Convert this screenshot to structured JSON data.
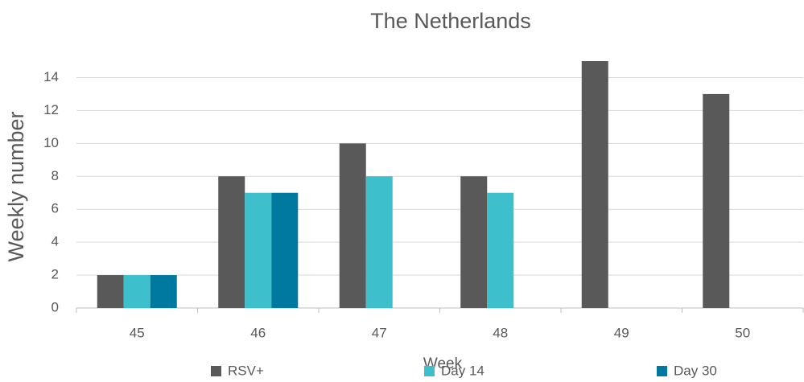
{
  "chart_data": {
    "type": "bar",
    "title": "The Netherlands",
    "x_label": "Week",
    "y_label": "Weekly number",
    "categories": [
      "45",
      "46",
      "47",
      "48",
      "49",
      "50"
    ],
    "series": [
      {
        "name": "RSV+",
        "color": "#595959",
        "values": [
          2,
          8,
          10,
          8,
          15,
          13
        ]
      },
      {
        "name": "Day 14",
        "color": "#3dbfcc",
        "values": [
          2,
          7,
          8,
          7,
          null,
          null
        ]
      },
      {
        "name": "Day 30",
        "color": "#0079a1",
        "values": [
          2,
          7,
          null,
          null,
          null,
          null
        ]
      }
    ],
    "ylim": [
      0,
      15
    ],
    "yticks": [
      0,
      2,
      4,
      6,
      8,
      10,
      12,
      14
    ],
    "grid": true,
    "legend": "bottom"
  }
}
